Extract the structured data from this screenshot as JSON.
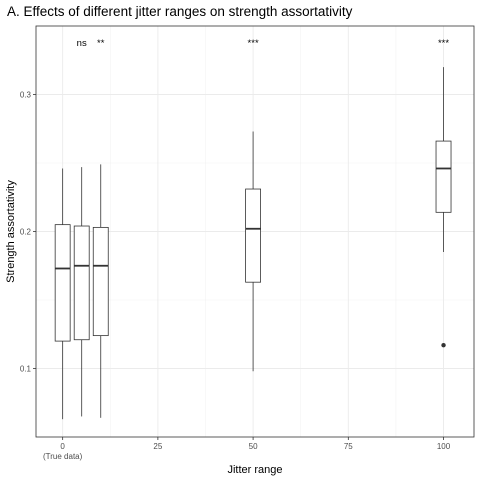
{
  "chart_data": {
    "type": "box",
    "title": "A. Effects of different jitter ranges on strength assortativity",
    "xlabel": "Jitter range",
    "ylabel": "Strength assortativity",
    "xlim": [
      -7,
      108
    ],
    "ylim": [
      0.05,
      0.35
    ],
    "x_ticks": [
      {
        "value": 0,
        "label": "0",
        "sublabel": "(True data)"
      },
      {
        "value": 25,
        "label": "25",
        "sublabel": ""
      },
      {
        "value": 50,
        "label": "50",
        "sublabel": ""
      },
      {
        "value": 75,
        "label": "75",
        "sublabel": ""
      },
      {
        "value": 100,
        "label": "100",
        "sublabel": ""
      }
    ],
    "y_ticks": [
      {
        "value": 0.1,
        "label": "0.1"
      },
      {
        "value": 0.2,
        "label": "0.2"
      },
      {
        "value": 0.3,
        "label": "0.3"
      }
    ],
    "grid": true,
    "boxes": [
      {
        "x": 0,
        "whisker_low": 0.063,
        "q1": 0.12,
        "median": 0.173,
        "q3": 0.205,
        "whisker_high": 0.246,
        "outliers": []
      },
      {
        "x": 5,
        "whisker_low": 0.065,
        "q1": 0.121,
        "median": 0.175,
        "q3": 0.204,
        "whisker_high": 0.247,
        "outliers": []
      },
      {
        "x": 10,
        "whisker_low": 0.064,
        "q1": 0.124,
        "median": 0.175,
        "q3": 0.203,
        "whisker_high": 0.249,
        "outliers": []
      },
      {
        "x": 50,
        "whisker_low": 0.098,
        "q1": 0.163,
        "median": 0.202,
        "q3": 0.231,
        "whisker_high": 0.273,
        "outliers": []
      },
      {
        "x": 100,
        "whisker_low": 0.185,
        "q1": 0.214,
        "median": 0.246,
        "q3": 0.266,
        "whisker_high": 0.32,
        "outliers": [
          0.117
        ]
      }
    ],
    "annotations": [
      {
        "x": 5,
        "text": "ns"
      },
      {
        "x": 10,
        "text": "**"
      },
      {
        "x": 50,
        "text": "***"
      },
      {
        "x": 100,
        "text": "***"
      }
    ]
  }
}
